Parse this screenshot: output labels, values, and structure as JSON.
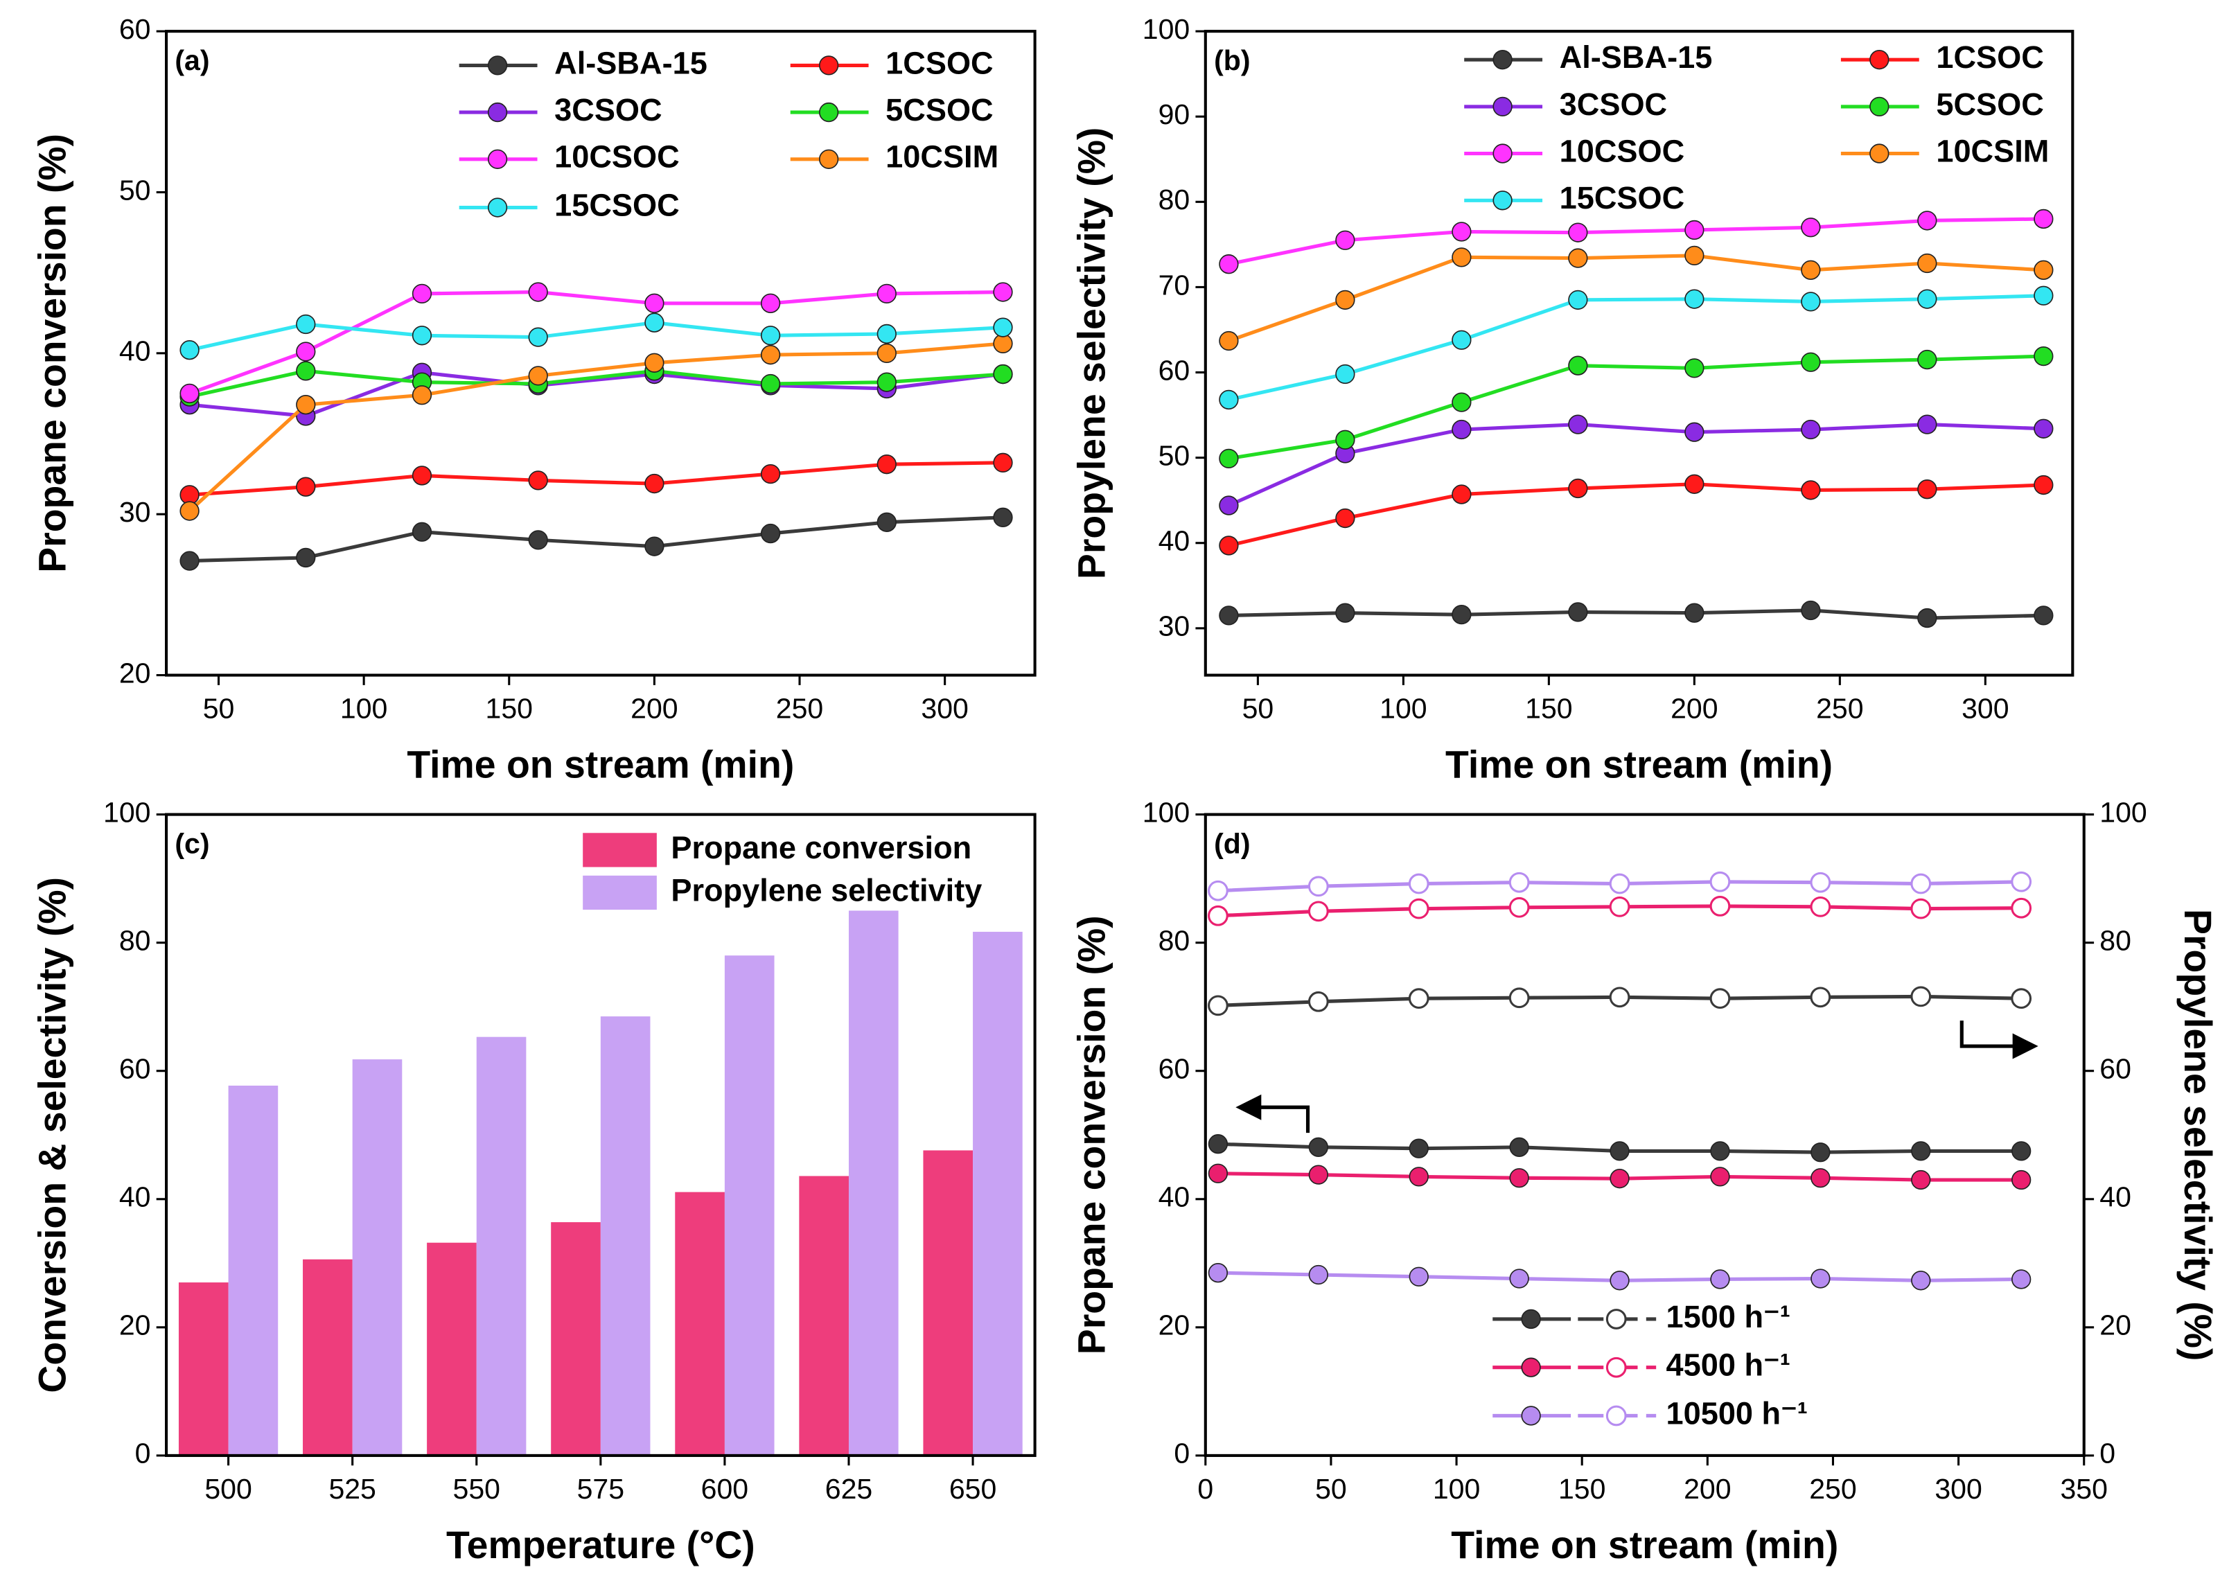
{
  "chart_data": [
    {
      "type": "line",
      "panel_label": "(a)",
      "xlabel": "Time on stream (min)",
      "ylabel": "Propane conversion (%)",
      "x": [
        40,
        80,
        120,
        160,
        200,
        240,
        280,
        320
      ],
      "xlim": [
        32,
        331
      ],
      "xticks": [
        50,
        100,
        150,
        200,
        250,
        300
      ],
      "ylim": [
        20,
        60
      ],
      "yticks": [
        20,
        30,
        40,
        50,
        60
      ],
      "series": [
        {
          "name": "Al-SBA-15",
          "color": "#3a3a3a",
          "values": [
            27.1,
            27.3,
            28.9,
            28.4,
            28.0,
            28.8,
            29.5,
            29.8
          ]
        },
        {
          "name": "1CSOC",
          "color": "#ff1a1a",
          "values": [
            31.2,
            31.7,
            32.4,
            32.1,
            31.9,
            32.5,
            33.1,
            33.2
          ]
        },
        {
          "name": "3CSOC",
          "color": "#8a2be2",
          "values": [
            36.8,
            36.1,
            38.8,
            38.0,
            38.7,
            38.0,
            37.8,
            38.7
          ]
        },
        {
          "name": "5CSOC",
          "color": "#22dd22",
          "values": [
            37.3,
            38.9,
            38.2,
            38.1,
            38.9,
            38.1,
            38.2,
            38.7
          ]
        },
        {
          "name": "10CSOC",
          "color": "#ff33ff",
          "values": [
            37.5,
            40.1,
            43.7,
            43.8,
            43.1,
            43.1,
            43.7,
            43.8
          ]
        },
        {
          "name": "10CSIM",
          "color": "#ff8c1a",
          "values": [
            30.2,
            36.8,
            37.4,
            38.6,
            39.4,
            39.9,
            40.0,
            40.6
          ]
        },
        {
          "name": "15CSOC",
          "color": "#33e6f2",
          "values": [
            40.2,
            41.8,
            41.1,
            41.0,
            41.9,
            41.1,
            41.2,
            41.6
          ]
        }
      ]
    },
    {
      "type": "line",
      "panel_label": "(b)",
      "xlabel": "Time on stream (min)",
      "ylabel": "Propylene selectivity (%)",
      "x": [
        40,
        80,
        120,
        160,
        200,
        240,
        280,
        320
      ],
      "xlim": [
        32,
        330
      ],
      "xticks": [
        50,
        100,
        150,
        200,
        250,
        300
      ],
      "ylim": [
        24.5,
        100
      ],
      "yticks": [
        30,
        40,
        50,
        60,
        70,
        80,
        90,
        100
      ],
      "series": [
        {
          "name": "Al-SBA-15",
          "color": "#3a3a3a",
          "values": [
            31.5,
            31.8,
            31.6,
            31.9,
            31.8,
            32.1,
            31.2,
            31.5
          ]
        },
        {
          "name": "1CSOC",
          "color": "#ff1a1a",
          "values": [
            39.7,
            42.9,
            45.7,
            46.4,
            46.9,
            46.2,
            46.3,
            46.8
          ]
        },
        {
          "name": "3CSOC",
          "color": "#8a2be2",
          "values": [
            44.4,
            50.5,
            53.3,
            53.9,
            53.0,
            53.3,
            53.9,
            53.4
          ]
        },
        {
          "name": "5CSOC",
          "color": "#22dd22",
          "values": [
            49.9,
            52.1,
            56.5,
            60.8,
            60.5,
            61.2,
            61.5,
            61.9
          ]
        },
        {
          "name": "10CSOC",
          "color": "#ff33ff",
          "values": [
            72.7,
            75.5,
            76.5,
            76.4,
            76.7,
            77.0,
            77.8,
            78.0
          ]
        },
        {
          "name": "10CSIM",
          "color": "#ff8c1a",
          "values": [
            63.7,
            68.5,
            73.5,
            73.4,
            73.7,
            72.0,
            72.8,
            72.0
          ]
        },
        {
          "name": "15CSOC",
          "color": "#33e6f2",
          "values": [
            56.8,
            59.8,
            63.8,
            68.5,
            68.6,
            68.3,
            68.6,
            69.0
          ]
        }
      ]
    },
    {
      "type": "bar",
      "panel_label": "(c)",
      "xlabel": "Temperature (°C)",
      "ylabel": "Conversion & selectivity (%)",
      "categories": [
        "500",
        "525",
        "550",
        "575",
        "600",
        "625",
        "650"
      ],
      "ylim": [
        0,
        100
      ],
      "yticks": [
        0,
        20,
        40,
        60,
        80,
        100
      ],
      "series": [
        {
          "name": "Propane conversion",
          "color": "#ee3d7c",
          "values": [
            27.0,
            30.6,
            33.2,
            36.4,
            41.1,
            43.6,
            47.6
          ]
        },
        {
          "name": "Propylene selectivity",
          "color": "#c8a2f4",
          "values": [
            57.7,
            61.8,
            65.3,
            68.5,
            78.0,
            85.0,
            81.7
          ]
        }
      ]
    },
    {
      "type": "line",
      "panel_label": "(d)",
      "xlabel": "Time on stream (min)",
      "ylabel": "Propane conversion (%)",
      "y2label": "Propylene selectivity (%)",
      "x": [
        5,
        45,
        85,
        125,
        165,
        205,
        245,
        285,
        325
      ],
      "xlim": [
        0,
        350
      ],
      "xticks": [
        0,
        50,
        100,
        150,
        200,
        250,
        300,
        350
      ],
      "ylim": [
        0,
        100
      ],
      "yticks": [
        0,
        20,
        40,
        60,
        80,
        100
      ],
      "y2lim": [
        0,
        100
      ],
      "y2ticks": [
        0,
        20,
        40,
        60,
        80,
        100
      ],
      "series": [
        {
          "name": "1500 h⁻¹",
          "color": "#3a3a3a",
          "values": [
            48.6,
            48.1,
            47.9,
            48.1,
            47.5,
            47.5,
            47.3,
            47.5,
            47.5
          ]
        },
        {
          "name": "4500 h⁻¹",
          "color": "#ea1f6e",
          "values": [
            44.0,
            43.8,
            43.5,
            43.3,
            43.2,
            43.5,
            43.3,
            43.0,
            43.0
          ]
        },
        {
          "name": "10500 h⁻¹",
          "color": "#b68cf0",
          "values": [
            28.5,
            28.2,
            27.9,
            27.6,
            27.3,
            27.5,
            27.6,
            27.3,
            27.5
          ]
        },
        {
          "color": "#3a3a3a",
          "marker": "open",
          "axis": "y2",
          "values": [
            70.2,
            70.8,
            71.3,
            71.4,
            71.5,
            71.3,
            71.5,
            71.6,
            71.3
          ]
        },
        {
          "color": "#ea1f6e",
          "marker": "open",
          "axis": "y2",
          "values": [
            84.2,
            84.9,
            85.3,
            85.5,
            85.6,
            85.7,
            85.6,
            85.3,
            85.4
          ]
        },
        {
          "color": "#b68cf0",
          "marker": "open",
          "axis": "y2",
          "values": [
            88.1,
            88.8,
            89.2,
            89.4,
            89.2,
            89.5,
            89.4,
            89.2,
            89.5
          ]
        }
      ]
    }
  ]
}
